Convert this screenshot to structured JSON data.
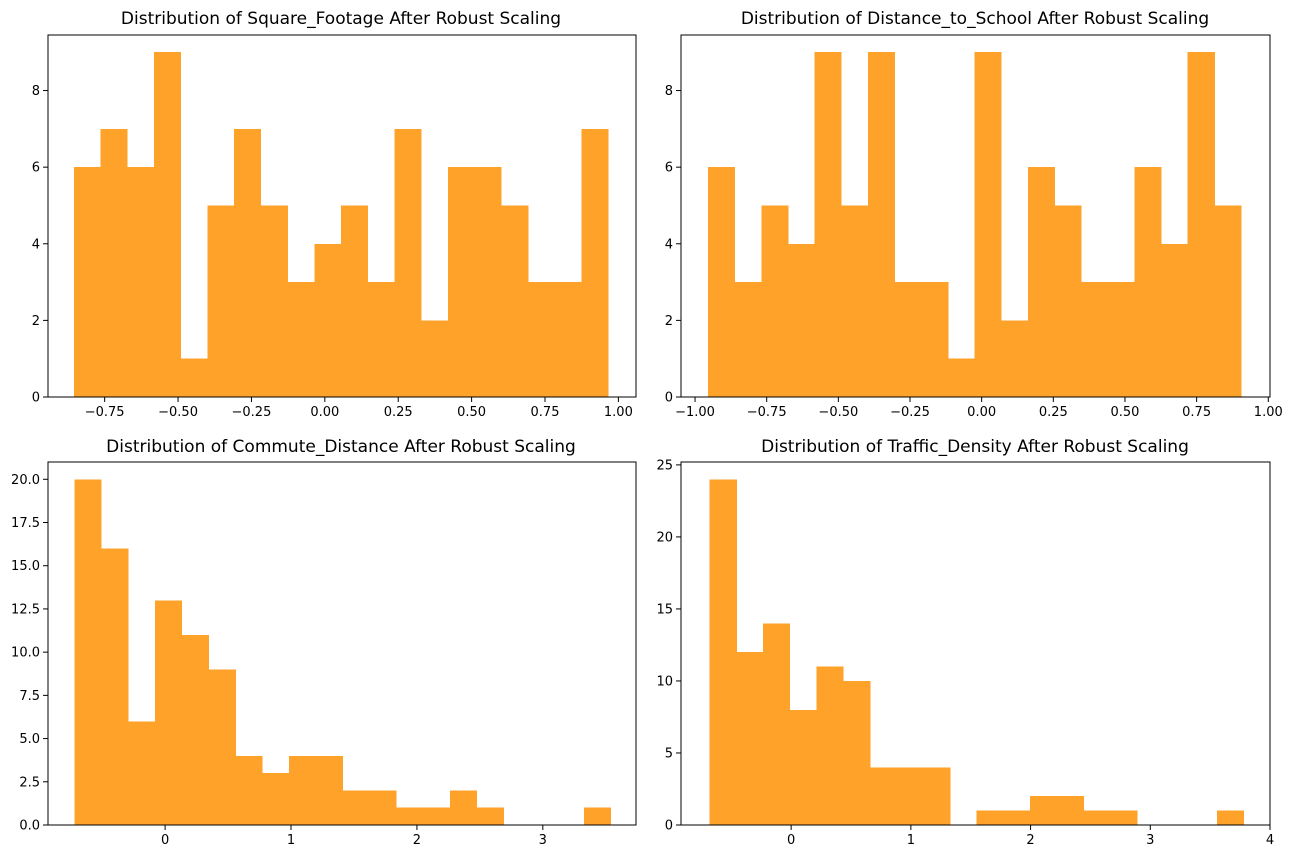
{
  "color": "#ffa22a",
  "chart_data": [
    {
      "type": "bar",
      "title": "Distribution of Square_Footage After Robust Scaling",
      "xlim": [
        -0.943,
        1.06
      ],
      "ylim": [
        0,
        9.45
      ],
      "bin_edges": [
        -0.855,
        -0.764,
        -0.673,
        -0.582,
        -0.491,
        -0.4,
        -0.309,
        -0.218,
        -0.127,
        -0.036,
        0.055,
        0.146,
        0.237,
        0.328,
        0.419,
        0.51,
        0.601,
        0.692,
        0.783,
        0.874,
        0.965
      ],
      "values": [
        6,
        7,
        6,
        9,
        1,
        5,
        7,
        5,
        3,
        4,
        5,
        3,
        7,
        2,
        6,
        6,
        5,
        3,
        3,
        7
      ],
      "xticks": [
        -0.75,
        -0.5,
        -0.25,
        0.0,
        0.25,
        0.5,
        0.75,
        1.0
      ],
      "xtick_labels": [
        "−0.75",
        "−0.50",
        "−0.25",
        "0.00",
        "0.25",
        "0.50",
        "0.75",
        "1.00"
      ],
      "yticks": [
        0,
        2,
        4,
        6,
        8
      ],
      "ytick_labels": [
        "0",
        "2",
        "4",
        "6",
        "8"
      ]
    },
    {
      "type": "bar",
      "title": "Distribution of Distance_to_School After Robust Scaling",
      "xlim": [
        -1.049,
        1.006
      ],
      "ylim": [
        0,
        9.45
      ],
      "bin_edges": [
        -0.955,
        -0.862,
        -0.769,
        -0.676,
        -0.583,
        -0.49,
        -0.397,
        -0.304,
        -0.211,
        -0.118,
        -0.025,
        0.068,
        0.161,
        0.254,
        0.347,
        0.44,
        0.533,
        0.626,
        0.719,
        0.812,
        0.905
      ],
      "values": [
        6,
        3,
        5,
        4,
        9,
        5,
        9,
        3,
        3,
        1,
        9,
        2,
        6,
        5,
        3,
        3,
        6,
        4,
        9,
        5
      ],
      "xticks": [
        -1.0,
        -0.75,
        -0.5,
        -0.25,
        0.0,
        0.25,
        0.5,
        0.75,
        1.0
      ],
      "xtick_labels": [
        "−1.00",
        "−0.75",
        "−0.50",
        "−0.25",
        "0.00",
        "0.25",
        "0.50",
        "0.75",
        "1.00"
      ],
      "yticks": [
        0,
        2,
        4,
        6,
        8
      ],
      "ytick_labels": [
        "0",
        "2",
        "4",
        "6",
        "8"
      ]
    },
    {
      "type": "bar",
      "title": "Distribution of Commute_Distance After Robust Scaling",
      "xlim": [
        -0.93,
        3.74
      ],
      "ylim": [
        0,
        21
      ],
      "bin_edges": [
        -0.72,
        -0.507,
        -0.294,
        -0.081,
        0.132,
        0.345,
        0.558,
        0.771,
        0.984,
        1.197,
        1.41,
        1.623,
        1.836,
        2.049,
        2.262,
        2.475,
        2.688,
        2.901,
        3.114,
        3.327,
        3.54
      ],
      "values": [
        20,
        16,
        6,
        13,
        11,
        9,
        4,
        3,
        4,
        4,
        2,
        2,
        1,
        1,
        2,
        1,
        0,
        0,
        0,
        1
      ],
      "xticks": [
        0,
        1,
        2,
        3
      ],
      "xtick_labels": [
        "0",
        "1",
        "2",
        "3"
      ],
      "yticks": [
        0,
        2.5,
        5,
        7.5,
        10,
        12.5,
        15,
        17.5,
        20
      ],
      "ytick_labels": [
        "0.0",
        "2.5",
        "5.0",
        "7.5",
        "10.0",
        "12.5",
        "15.0",
        "17.5",
        "20.0"
      ]
    },
    {
      "type": "bar",
      "title": "Distribution of Traffic_Density After Robust Scaling",
      "xlim": [
        -0.92,
        4.0
      ],
      "ylim": [
        0,
        25.2
      ],
      "bin_edges": [
        -0.68,
        -0.457,
        -0.234,
        -0.011,
        0.212,
        0.435,
        0.658,
        0.881,
        1.104,
        1.327,
        1.55,
        1.773,
        1.996,
        2.219,
        2.442,
        2.665,
        2.888,
        3.111,
        3.334,
        3.557,
        3.78
      ],
      "values": [
        24,
        12,
        14,
        8,
        11,
        10,
        4,
        4,
        4,
        0,
        1,
        1,
        2,
        2,
        1,
        1,
        0,
        0,
        0,
        1
      ],
      "xticks": [
        0,
        1,
        2,
        3,
        4
      ],
      "xtick_labels": [
        "0",
        "1",
        "2",
        "3",
        "4"
      ],
      "yticks": [
        0,
        5,
        10,
        15,
        20,
        25
      ],
      "ytick_labels": [
        "0",
        "5",
        "10",
        "15",
        "20",
        "25"
      ]
    }
  ]
}
